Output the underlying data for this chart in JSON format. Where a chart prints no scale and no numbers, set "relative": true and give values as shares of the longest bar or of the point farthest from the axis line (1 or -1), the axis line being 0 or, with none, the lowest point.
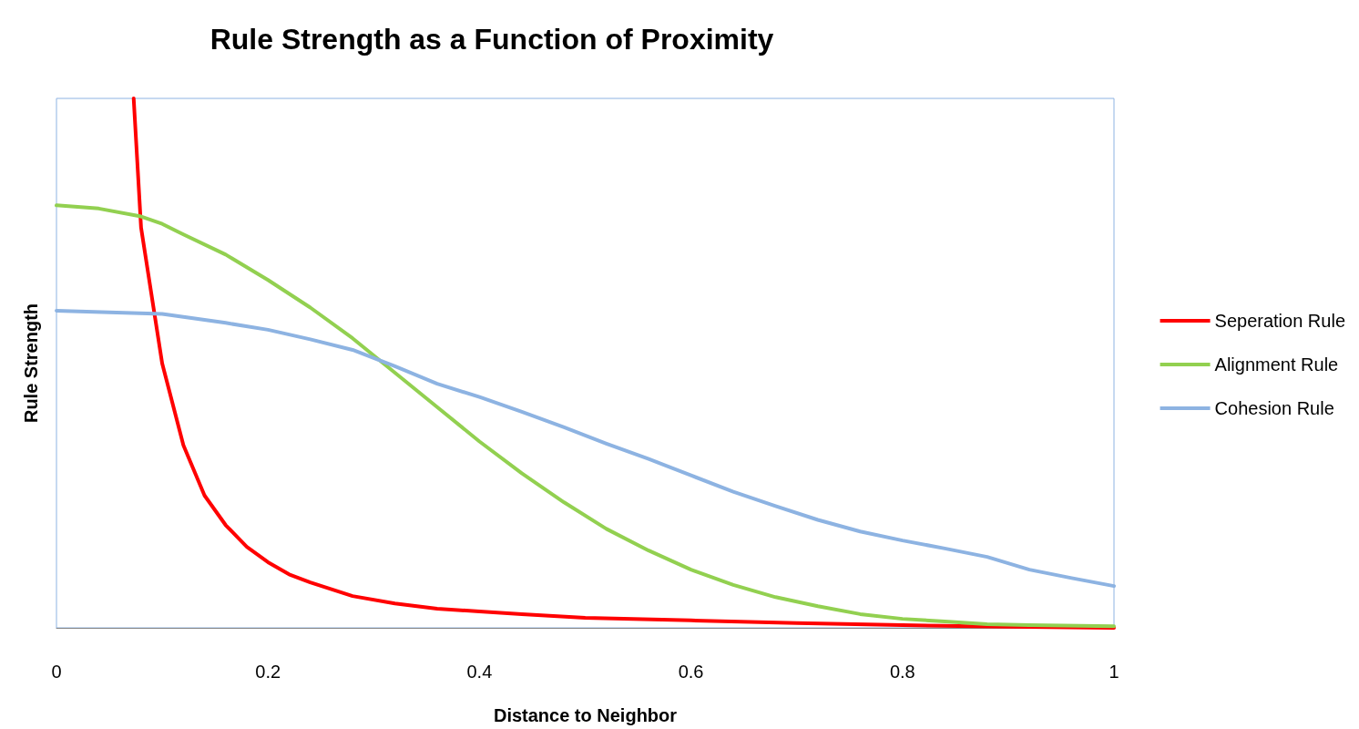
{
  "chart_data": {
    "type": "line",
    "title": "Rule Strength as a Function of Proximity",
    "xlabel": "Distance to Neighbor",
    "ylabel": "Rule Strength",
    "relative": true,
    "xlim": [
      0,
      1
    ],
    "xticks": [
      0,
      0.2,
      0.4,
      0.6,
      0.8,
      1
    ],
    "grid": false,
    "legend": "right",
    "marker": "none",
    "line_style": "solid",
    "series": [
      {
        "name": "Seperation Rule",
        "color": "#ff0000",
        "x": [
          0.073,
          0.08,
          0.1,
          0.12,
          0.14,
          0.16,
          0.18,
          0.2,
          0.22,
          0.24,
          0.28,
          0.32,
          0.36,
          0.4,
          0.44,
          0.5,
          0.6,
          0.7,
          0.8,
          0.9,
          1.0
        ],
        "values": [
          1.0,
          0.756,
          0.499,
          0.345,
          0.25,
          0.194,
          0.153,
          0.124,
          0.101,
          0.086,
          0.06,
          0.046,
          0.036,
          0.031,
          0.026,
          0.019,
          0.014,
          0.009,
          0.005,
          0.002,
          0
        ]
      },
      {
        "name": "Alignment Rule",
        "color": "#92d050",
        "x": [
          0,
          0.04,
          0.08,
          0.1,
          0.12,
          0.16,
          0.2,
          0.24,
          0.28,
          0.32,
          0.36,
          0.4,
          0.44,
          0.48,
          0.52,
          0.56,
          0.6,
          0.64,
          0.68,
          0.72,
          0.76,
          0.8,
          0.84,
          0.88,
          0.92,
          1.0
        ],
        "values": [
          0.798,
          0.792,
          0.777,
          0.763,
          0.743,
          0.705,
          0.657,
          0.605,
          0.547,
          0.482,
          0.417,
          0.352,
          0.292,
          0.237,
          0.187,
          0.146,
          0.11,
          0.081,
          0.058,
          0.041,
          0.026,
          0.017,
          0.012,
          0.007,
          0.005,
          0.003
        ]
      },
      {
        "name": "Cohesion Rule",
        "color": "#8db3e2",
        "x": [
          0,
          0.1,
          0.16,
          0.2,
          0.24,
          0.28,
          0.32,
          0.36,
          0.4,
          0.44,
          0.48,
          0.52,
          0.56,
          0.6,
          0.64,
          0.68,
          0.72,
          0.76,
          0.8,
          0.84,
          0.88,
          0.92,
          0.96,
          1.0
        ],
        "values": [
          0.599,
          0.593,
          0.576,
          0.563,
          0.545,
          0.525,
          0.494,
          0.461,
          0.436,
          0.408,
          0.379,
          0.348,
          0.319,
          0.288,
          0.257,
          0.23,
          0.204,
          0.182,
          0.165,
          0.15,
          0.134,
          0.11,
          0.094,
          0.079
        ]
      }
    ]
  }
}
